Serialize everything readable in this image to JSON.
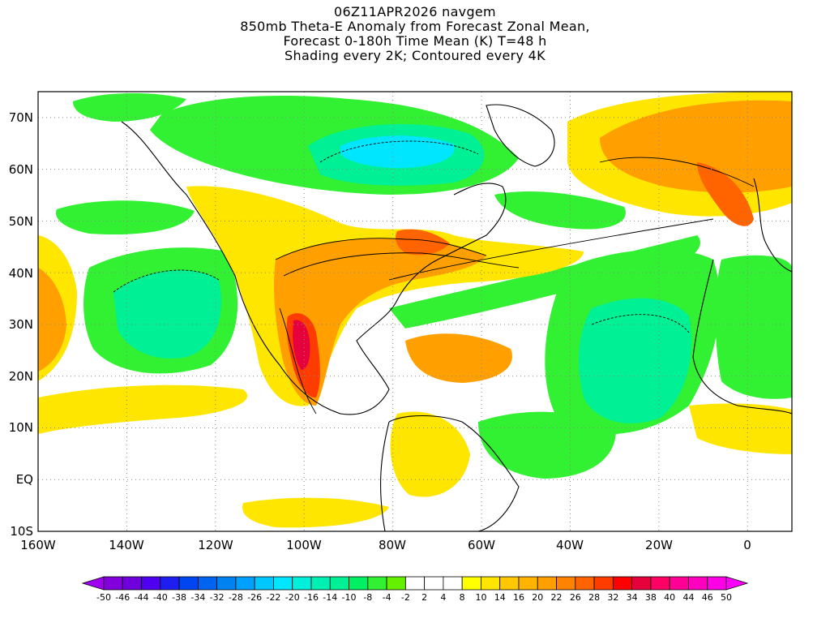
{
  "title": {
    "lines": [
      "06Z11APR2026 navgem",
      "850mb Theta-E Anomaly from Forecast Zonal Mean,",
      "Forecast 0-180h Time Mean (K) T=48 h",
      "Shading every 2K; Contoured every 4K"
    ]
  },
  "map": {
    "lat_labels": [
      "70N",
      "60N",
      "50N",
      "40N",
      "30N",
      "20N",
      "10N",
      "EQ",
      "10S"
    ],
    "lon_labels": [
      "160W",
      "140W",
      "120W",
      "100W",
      "80W",
      "60W",
      "40W",
      "20W",
      "0"
    ],
    "lat_values": [
      70,
      60,
      50,
      40,
      30,
      20,
      10,
      0,
      -10
    ],
    "lon_values": [
      -160,
      -140,
      -120,
      -100,
      -80,
      -60,
      -40,
      -20,
      0
    ],
    "lon_range": [
      -160,
      10
    ],
    "lat_range": [
      -10,
      75
    ]
  },
  "colorbar": {
    "labels": [
      "-50",
      "-46",
      "-44",
      "-40",
      "-38",
      "-34",
      "-32",
      "-28",
      "-26",
      "-22",
      "-20",
      "-16",
      "-14",
      "-10",
      "-8",
      "-4",
      "-2",
      "2",
      "4",
      "8",
      "10",
      "14",
      "16",
      "20",
      "22",
      "26",
      "28",
      "32",
      "34",
      "38",
      "40",
      "44",
      "46",
      "50"
    ],
    "colors": [
      "#a000f0",
      "#8200dc",
      "#6e00dc",
      "#5000f0",
      "#1e1ef0",
      "#0046f0",
      "#0064f0",
      "#0082f0",
      "#00a0ff",
      "#00c8ff",
      "#00e6ff",
      "#00f0dc",
      "#00f0b4",
      "#00f096",
      "#00f064",
      "#32f032",
      "#64f000",
      "#ffffff",
      "#ffffff",
      "#ffffff",
      "#ffff00",
      "#ffe600",
      "#ffc800",
      "#ffb400",
      "#ffa000",
      "#ff8200",
      "#ff6400",
      "#ff3c00",
      "#ff0000",
      "#e6003c",
      "#ff0064",
      "#ff0096",
      "#ff00be",
      "#ff00e6",
      "#ff00ff"
    ]
  }
}
